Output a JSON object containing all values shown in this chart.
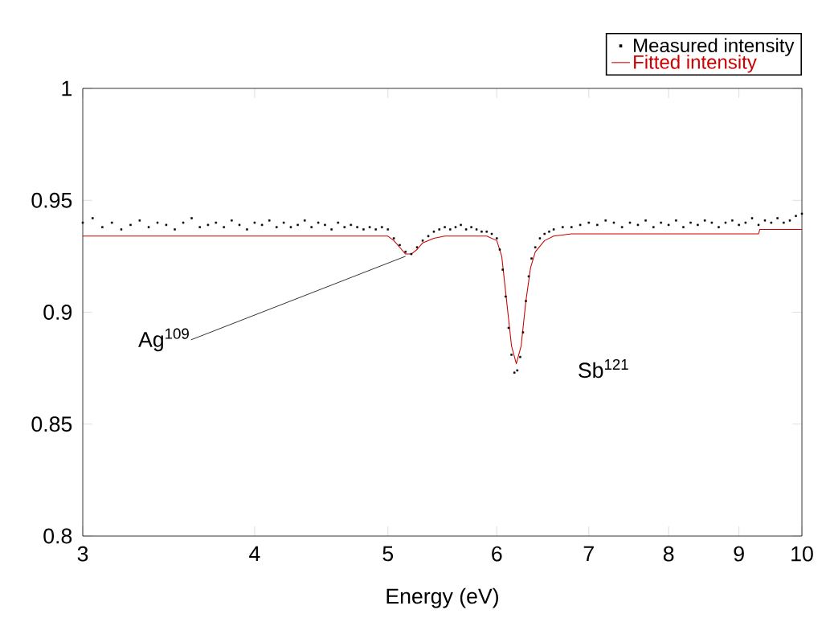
{
  "chart_data": {
    "type": "scatter",
    "xlabel": "Energy (eV)",
    "log": "x",
    "xlim": [
      3,
      10
    ],
    "xticks": [
      3,
      4,
      5,
      6,
      7,
      8,
      9,
      10
    ],
    "ylim": [
      0.8,
      1
    ],
    "yticks": [
      0.8,
      0.85,
      0.9,
      0.95,
      1
    ],
    "grid": false,
    "legend": "top right",
    "series": [
      {
        "name": "Measured intensity",
        "marker": "square",
        "color": "#000000",
        "x": [
          3.0,
          3.05,
          3.1,
          3.15,
          3.2,
          3.25,
          3.3,
          3.35,
          3.4,
          3.45,
          3.5,
          3.55,
          3.6,
          3.65,
          3.7,
          3.75,
          3.8,
          3.85,
          3.9,
          3.95,
          4.0,
          4.05,
          4.1,
          4.15,
          4.2,
          4.25,
          4.3,
          4.35,
          4.4,
          4.45,
          4.5,
          4.55,
          4.6,
          4.65,
          4.7,
          4.75,
          4.8,
          4.85,
          4.9,
          4.95,
          5.0,
          5.05,
          5.1,
          5.15,
          5.2,
          5.25,
          5.3,
          5.35,
          5.4,
          5.45,
          5.5,
          5.55,
          5.6,
          5.65,
          5.7,
          5.75,
          5.8,
          5.85,
          5.9,
          5.95,
          6.0,
          6.03,
          6.06,
          6.09,
          6.12,
          6.15,
          6.18,
          6.21,
          6.24,
          6.27,
          6.3,
          6.33,
          6.36,
          6.4,
          6.45,
          6.5,
          6.55,
          6.6,
          6.7,
          6.8,
          6.9,
          7.0,
          7.1,
          7.2,
          7.3,
          7.4,
          7.5,
          7.6,
          7.7,
          7.8,
          7.9,
          8.0,
          8.1,
          8.2,
          8.3,
          8.4,
          8.5,
          8.6,
          8.7,
          8.8,
          8.9,
          9.0,
          9.1,
          9.2,
          9.3,
          9.4,
          9.5,
          9.6,
          9.7,
          9.8,
          9.9,
          10.0
        ],
        "values": [
          0.94,
          0.942,
          0.938,
          0.94,
          0.937,
          0.939,
          0.941,
          0.938,
          0.94,
          0.939,
          0.937,
          0.94,
          0.942,
          0.938,
          0.939,
          0.94,
          0.938,
          0.941,
          0.939,
          0.937,
          0.94,
          0.939,
          0.941,
          0.938,
          0.94,
          0.938,
          0.939,
          0.941,
          0.938,
          0.94,
          0.939,
          0.937,
          0.94,
          0.938,
          0.939,
          0.938,
          0.937,
          0.938,
          0.937,
          0.938,
          0.937,
          0.933,
          0.93,
          0.927,
          0.926,
          0.929,
          0.932,
          0.934,
          0.936,
          0.937,
          0.938,
          0.937,
          0.938,
          0.939,
          0.937,
          0.938,
          0.937,
          0.936,
          0.936,
          0.935,
          0.933,
          0.928,
          0.919,
          0.907,
          0.893,
          0.881,
          0.873,
          0.874,
          0.88,
          0.891,
          0.905,
          0.916,
          0.924,
          0.929,
          0.933,
          0.935,
          0.936,
          0.937,
          0.938,
          0.938,
          0.939,
          0.94,
          0.939,
          0.941,
          0.94,
          0.938,
          0.94,
          0.939,
          0.941,
          0.938,
          0.94,
          0.939,
          0.941,
          0.938,
          0.94,
          0.939,
          0.941,
          0.94,
          0.938,
          0.94,
          0.941,
          0.939,
          0.94,
          0.942,
          0.939,
          0.941,
          0.94,
          0.942,
          0.94,
          0.941,
          0.943,
          0.944
        ]
      },
      {
        "name": "Fitted intensity",
        "type": "line",
        "marker": "none",
        "color": "#cc0000",
        "line_style": "solid",
        "x": [
          3,
          5.0,
          5.05,
          5.1,
          5.15,
          5.2,
          5.25,
          5.3,
          5.4,
          5.5,
          5.9,
          6.0,
          6.05,
          6.1,
          6.15,
          6.2,
          6.25,
          6.3,
          6.35,
          6.4,
          6.5,
          6.6,
          6.8,
          9.3,
          9.32,
          10
        ],
        "values": [
          0.934,
          0.934,
          0.932,
          0.929,
          0.926,
          0.926,
          0.928,
          0.931,
          0.933,
          0.934,
          0.934,
          0.932,
          0.925,
          0.905,
          0.885,
          0.877,
          0.885,
          0.905,
          0.92,
          0.927,
          0.932,
          0.934,
          0.935,
          0.935,
          0.937,
          0.937
        ]
      }
    ],
    "annotations": [
      {
        "text": "Ag$^{109}$",
        "x": 5.15,
        "y": 0.925
      },
      {
        "text": "Sb$^{121}$",
        "x": 6.2,
        "y": 0.877
      }
    ]
  }
}
